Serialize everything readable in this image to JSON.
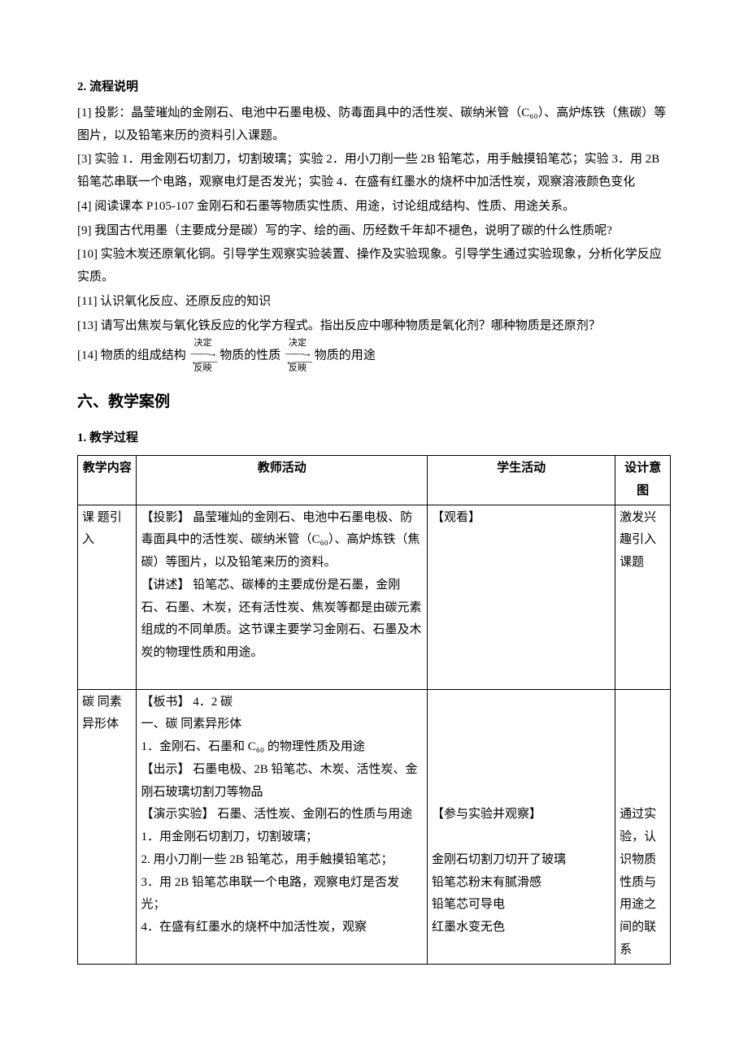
{
  "section2": {
    "title": "2. 流程说明",
    "items": [
      "[1] 投影：晶莹璀灿的金刚石、电池中石墨电极、防毒面具中的活性炭、碳纳米管（C₆₀）、高炉炼铁（焦碳）等图片，以及铅笔来历的资料引入课题。",
      "[3] 实验 1．用金刚石切割刀，切割玻璃；实验 2．用小刀削一些 2B 铅笔芯，用手触摸铅笔芯；实验 3．用 2B 铅笔芯串联一个电路，观察电灯是否发光；实验 4．在盛有红墨水的烧杯中加活性炭，观察溶液颜色变化",
      "[4] 阅读课本 P105-107 金刚石和石墨等物质实性质、用途，讨论组成结构、性质、用途关系。",
      "[9] 我国古代用墨（主要成分是碳）写的字、绘的画、历经数千年却不褪色，说明了碳的什么性质呢?",
      "[10] 实验木炭还原氧化铜。引导学生观察实验装置、操作及实验现象。引导学生通过实验现象，分析化学反应实质。",
      "[11] 认识氧化反应、还原反应的知识",
      "[13] 请写出焦炭与氧化铁反应的化学方程式。指出反应中哪种物质是氧化剂？哪种物质是还原剂？"
    ],
    "item14_prefix": "[14] 物质的组成结构",
    "item14_mid": "物质的性质",
    "item14_suffix": "物质的用途",
    "arrow_top": "决定",
    "arrow_bot": "反映"
  },
  "section6": {
    "title": "六、教学案例",
    "sub1": "1.  教学过程",
    "table": {
      "headers": [
        "教学内容",
        "教师活动",
        "学生活动",
        "设计意图"
      ],
      "rows": [
        {
          "c1": "课 题引入",
          "c2": "【投影】 晶莹璀灿的金刚石、电池中石墨电极、防毒面具中的活性炭、碳纳米管（C₆₀）、高炉炼铁（焦碳）等图片，以及铅笔来历的资料。\n【讲述】 铅笔芯、碳棒的主要成份是石墨，金刚石、石墨、木炭，还有活性炭、焦炭等都是由碳元素组成的不同单质。这节课主要学习金刚石、石墨及木炭的物理性质和用途。\n",
          "c3": "【观看】",
          "c4": "激发兴趣引入课题"
        },
        {
          "c1": "碳  同素  异形体",
          "c2": "【板书】 4．2   碳\n一、碳   同素异形体\n1．金刚石、石墨和 C₆₀ 的物理性质及用途\n【出示】 石墨电极、2B 铅笔芯、木炭、活性炭、金刚石玻璃切割刀等物品\n【演示实验】 石墨、活性炭、金刚石的性质与用途\n1．用金刚石切割刀，切割玻璃；\n2. 用小刀削一些 2B 铅笔芯，用手触摸铅笔芯；\n3．用 2B 铅笔芯串联一个电路，观察电灯是否发光；\n4．在盛有红墨水的烧杯中加活性炭，观察",
          "c3": "\n\n\n\n\n【参与实验并观察】\n\n金刚石切割刀切开了玻璃\n铅笔芯粉末有腻滑感\n铅笔芯可导电\n红墨水变无色",
          "c4": "\n\n\n\n\n通过实验，认识物质性质与用途之间的联系"
        }
      ]
    }
  }
}
